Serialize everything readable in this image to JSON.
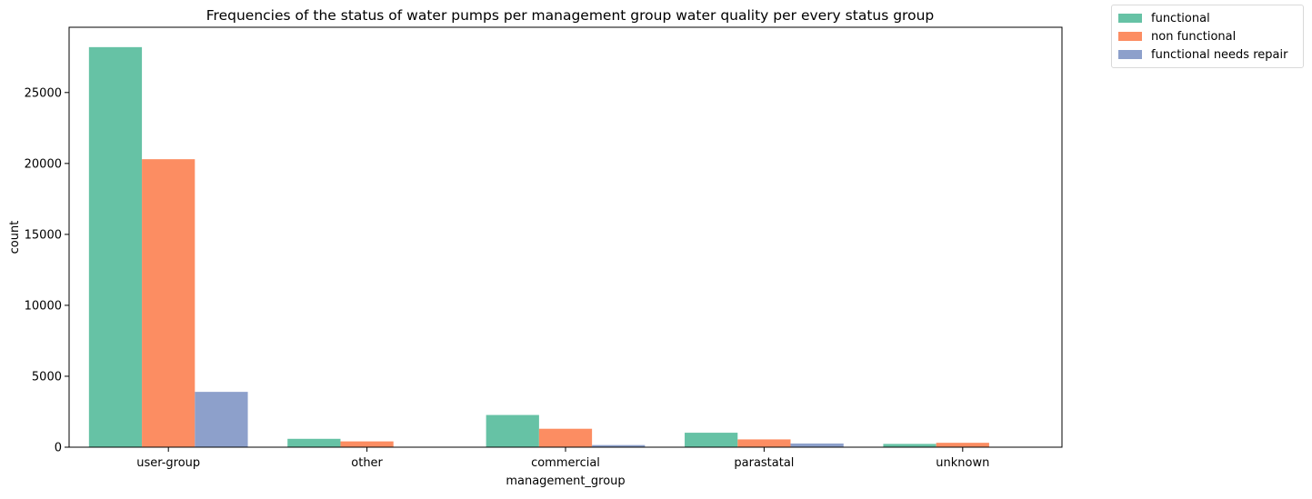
{
  "chart_data": {
    "type": "bar",
    "title": "Frequencies of the status of water pumps per management group water quality per every status group",
    "xlabel": "management_group",
    "ylabel": "count",
    "categories": [
      "user-group",
      "other",
      "commercial",
      "parastatal",
      "unknown"
    ],
    "series": [
      {
        "name": "functional",
        "color": "#66c2a5",
        "values": [
          28200,
          590,
          2270,
          1020,
          230
        ]
      },
      {
        "name": "non functional",
        "color": "#fc8d62",
        "values": [
          20300,
          410,
          1300,
          550,
          310
        ]
      },
      {
        "name": "functional needs repair",
        "color": "#8da0cb",
        "values": [
          3900,
          30,
          150,
          260,
          20
        ]
      }
    ],
    "ylim": [
      0,
      29600
    ],
    "yticks": [
      0,
      5000,
      10000,
      15000,
      20000,
      25000
    ],
    "grid": false,
    "legend_position": "outside-top-right"
  }
}
